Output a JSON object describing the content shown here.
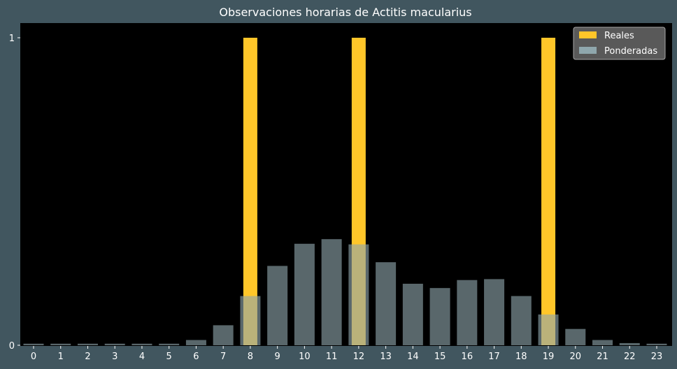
{
  "chart_data": {
    "type": "bar",
    "title": "Observaciones horarias de Actitis macularius",
    "xlabel": "",
    "ylabel": "",
    "categories": [
      "0",
      "1",
      "2",
      "3",
      "4",
      "5",
      "6",
      "7",
      "8",
      "9",
      "10",
      "11",
      "12",
      "13",
      "14",
      "15",
      "16",
      "17",
      "18",
      "19",
      "20",
      "21",
      "22",
      "23"
    ],
    "series": [
      {
        "name": "Reales",
        "values": [
          0,
          0,
          0,
          0,
          0,
          0,
          0,
          0,
          1,
          0,
          0,
          0,
          1,
          0,
          0,
          0,
          0,
          0,
          0,
          1,
          0,
          0,
          0,
          0
        ]
      },
      {
        "name": "Ponderadas",
        "values": [
          0.005,
          0.005,
          0.005,
          0.005,
          0.005,
          0.005,
          0.017,
          0.065,
          0.16,
          0.258,
          0.33,
          0.345,
          0.328,
          0.27,
          0.2,
          0.186,
          0.212,
          0.215,
          0.16,
          0.1,
          0.053,
          0.017,
          0.007,
          0.005
        ]
      }
    ],
    "yticks": [
      "0",
      "1"
    ],
    "ylim": [
      0,
      1.05
    ],
    "legend_position": "top-right",
    "grid": false,
    "colors": {
      "figure_background": "#41565f",
      "plot_background": "#000000",
      "Reales": "#ffc629",
      "Ponderadas": "#8fa7ad",
      "text": "#ffffff"
    }
  }
}
